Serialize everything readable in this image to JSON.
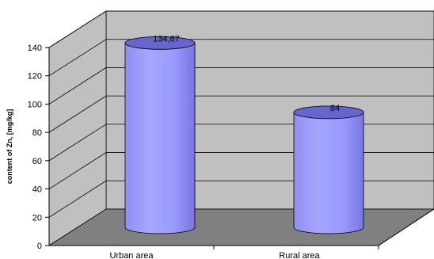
{
  "chart_data": {
    "type": "bar",
    "style": "3d-cylinder",
    "categories": [
      "Urban area",
      "Rural area"
    ],
    "values": [
      134.67,
      84
    ],
    "data_labels": [
      "134,67",
      "84"
    ],
    "ylabel": "content of Zn, [mg/kg]",
    "ylim": [
      0,
      140
    ],
    "yticks": [
      "0",
      "20",
      "40",
      "60",
      "80",
      "100",
      "120",
      "140"
    ],
    "grid": true,
    "legend": "none",
    "colors": {
      "bar": "#9999ff",
      "bar_dark": "#6666cc",
      "back_wall": "#c0c0c0",
      "floor": "#808080"
    }
  }
}
